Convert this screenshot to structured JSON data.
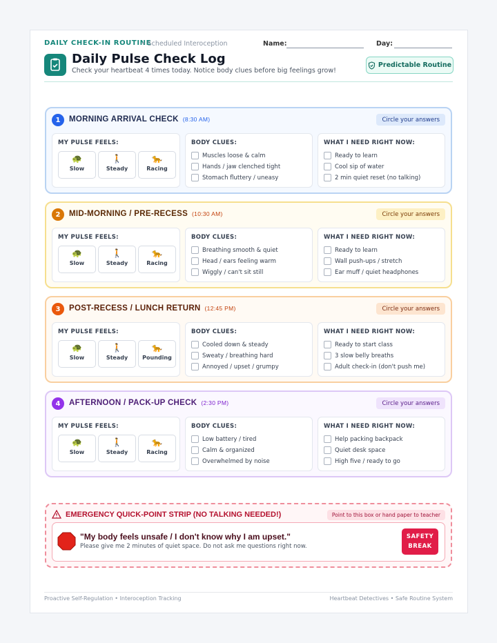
{
  "header": {
    "routine": "DAILY CHECK-IN ROUTINE",
    "subtitle": "Scheduled Interoception",
    "name_label": "Name:",
    "day_label": "Day:",
    "title": "Daily Pulse Check Log",
    "description": "Check your heartbeat 4 times today. Notice body clues before big feelings grow!",
    "badge": "Predictable Routine"
  },
  "sections": [
    {
      "number": 1,
      "title": "MORNING ARRIVAL CHECK",
      "time": "(8:30 AM)",
      "prompt": "Circle your answers",
      "pulse_label": "MY PULSE FEELS:",
      "pulse": [
        {
          "icon": "🐢",
          "label": "Slow"
        },
        {
          "icon": "🚶",
          "label": "Steady"
        },
        {
          "icon": "🐆",
          "label": "Racing"
        }
      ],
      "body_label": "BODY CLUES:",
      "body": [
        "Muscles loose & calm",
        "Hands / jaw clenched tight",
        "Stomach fluttery / uneasy"
      ],
      "need_label": "WHAT I NEED RIGHT NOW:",
      "needs": [
        "Ready to learn",
        "Cool sip of water",
        "2 min quiet reset (no talking)"
      ]
    },
    {
      "number": 2,
      "title": "MID-MORNING / PRE-RECESS",
      "time": "(10:30 AM)",
      "prompt": "Circle your answers",
      "pulse_label": "MY PULSE FEELS:",
      "pulse": [
        {
          "icon": "🐢",
          "label": "Slow"
        },
        {
          "icon": "🚶",
          "label": "Steady"
        },
        {
          "icon": "🐆",
          "label": "Racing"
        }
      ],
      "body_label": "BODY CLUES:",
      "body": [
        "Breathing smooth & quiet",
        "Head / ears feeling warm",
        "Wiggly / can't sit still"
      ],
      "need_label": "WHAT I NEED RIGHT NOW:",
      "needs": [
        "Ready to learn",
        "Wall push-ups / stretch",
        "Ear muff / quiet headphones"
      ]
    },
    {
      "number": 3,
      "title": "POST-RECESS / LUNCH RETURN",
      "time": "(12:45 PM)",
      "prompt": "Circle your answers",
      "pulse_label": "MY PULSE FEELS:",
      "pulse": [
        {
          "icon": "🐢",
          "label": "Slow"
        },
        {
          "icon": "🚶",
          "label": "Steady"
        },
        {
          "icon": "🐆",
          "label": "Pounding"
        }
      ],
      "body_label": "BODY CLUES:",
      "body": [
        "Cooled down & steady",
        "Sweaty / breathing hard",
        "Annoyed / upset / grumpy"
      ],
      "need_label": "WHAT I NEED RIGHT NOW:",
      "needs": [
        "Ready to start class",
        "3 slow belly breaths",
        "Adult check-in (don't push me)"
      ]
    },
    {
      "number": 4,
      "title": "AFTERNOON / PACK-UP CHECK",
      "time": "(2:30 PM)",
      "prompt": "Circle your answers",
      "pulse_label": "MY PULSE FEELS:",
      "pulse": [
        {
          "icon": "🐢",
          "label": "Slow"
        },
        {
          "icon": "🚶",
          "label": "Steady"
        },
        {
          "icon": "🐆",
          "label": "Racing"
        }
      ],
      "body_label": "BODY CLUES:",
      "body": [
        "Low battery / tired",
        "Calm & organized",
        "Overwhelmed by noise"
      ],
      "need_label": "WHAT I NEED RIGHT NOW:",
      "needs": [
        "Help packing backpack",
        "Quiet desk space",
        "High five / ready to go"
      ]
    }
  ],
  "emergency": {
    "title": "EMERGENCY QUICK-POINT STRIP (NO TALKING NEEDED!)",
    "hint": "Point to this box or hand paper to teacher",
    "quote": "\"My body feels unsafe / I don't know why I am upset.\"",
    "request": "Please give me 2 minutes of quiet space. Do not ask me questions right now.",
    "button": "SAFETY BREAK"
  },
  "footer": {
    "left": "Proactive Self-Regulation • Interoception Tracking",
    "right": "Heartbeat Detectives • Safe Routine System"
  }
}
